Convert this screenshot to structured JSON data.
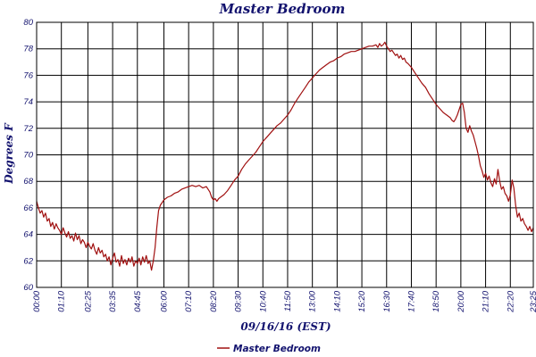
{
  "chart_data": {
    "type": "line",
    "title": "Master Bedroom",
    "xlabel": "09/16/16 (EST)",
    "ylabel": "Degrees F",
    "ylim": [
      60,
      80
    ],
    "y_ticks": [
      "60",
      "62",
      "64",
      "66",
      "68",
      "70",
      "72",
      "74",
      "76",
      "78",
      "80"
    ],
    "x_ticks": [
      "00:00",
      "01:10",
      "02:25",
      "03:35",
      "04:45",
      "06:00",
      "07:10",
      "08:20",
      "09:30",
      "10:40",
      "11:50",
      "13:00",
      "14:10",
      "15:20",
      "16:30",
      "17:40",
      "18:50",
      "20:00",
      "21:10",
      "22:20",
      "23:25"
    ],
    "x_tick_minutes": [
      0,
      70,
      145,
      215,
      285,
      360,
      430,
      500,
      570,
      640,
      710,
      780,
      850,
      920,
      990,
      1060,
      1130,
      1200,
      1270,
      1340,
      1405
    ],
    "x_range_minutes": [
      0,
      1405
    ],
    "grid": true,
    "legend_position": "bottom",
    "line_color": "#a01010",
    "text_color": "#12126e",
    "series": [
      {
        "name": "Master Bedroom",
        "points": [
          [
            0,
            66.5
          ],
          [
            5,
            66.0
          ],
          [
            10,
            65.6
          ],
          [
            15,
            65.8
          ],
          [
            20,
            65.3
          ],
          [
            25,
            65.6
          ],
          [
            30,
            65.0
          ],
          [
            35,
            65.2
          ],
          [
            40,
            64.6
          ],
          [
            45,
            64.9
          ],
          [
            50,
            64.4
          ],
          [
            55,
            64.8
          ],
          [
            60,
            64.5
          ],
          [
            65,
            64.3
          ],
          [
            70,
            64.0
          ],
          [
            75,
            64.5
          ],
          [
            80,
            64.1
          ],
          [
            85,
            63.8
          ],
          [
            90,
            64.2
          ],
          [
            95,
            63.7
          ],
          [
            100,
            63.9
          ],
          [
            105,
            63.5
          ],
          [
            110,
            64.1
          ],
          [
            115,
            63.6
          ],
          [
            120,
            63.9
          ],
          [
            125,
            63.3
          ],
          [
            130,
            63.6
          ],
          [
            135,
            63.4
          ],
          [
            140,
            63.0
          ],
          [
            145,
            63.4
          ],
          [
            150,
            63.1
          ],
          [
            155,
            62.9
          ],
          [
            160,
            63.3
          ],
          [
            165,
            62.8
          ],
          [
            170,
            62.5
          ],
          [
            175,
            63.0
          ],
          [
            180,
            62.6
          ],
          [
            185,
            62.8
          ],
          [
            190,
            62.3
          ],
          [
            195,
            62.5
          ],
          [
            200,
            62.0
          ],
          [
            205,
            62.3
          ],
          [
            210,
            61.7
          ],
          [
            215,
            62.2
          ],
          [
            220,
            62.6
          ],
          [
            225,
            61.9
          ],
          [
            230,
            62.1
          ],
          [
            235,
            61.6
          ],
          [
            240,
            62.4
          ],
          [
            245,
            61.8
          ],
          [
            250,
            62.1
          ],
          [
            255,
            61.7
          ],
          [
            260,
            62.2
          ],
          [
            265,
            61.9
          ],
          [
            270,
            62.3
          ],
          [
            275,
            61.6
          ],
          [
            280,
            62.0
          ],
          [
            285,
            61.8
          ],
          [
            290,
            62.2
          ],
          [
            295,
            61.7
          ],
          [
            300,
            62.3
          ],
          [
            305,
            61.9
          ],
          [
            310,
            62.4
          ],
          [
            315,
            61.8
          ],
          [
            320,
            62.0
          ],
          [
            325,
            61.3
          ],
          [
            330,
            62.0
          ],
          [
            335,
            63.0
          ],
          [
            340,
            64.5
          ],
          [
            345,
            65.8
          ],
          [
            350,
            66.2
          ],
          [
            355,
            66.4
          ],
          [
            360,
            66.6
          ],
          [
            370,
            66.8
          ],
          [
            380,
            66.9
          ],
          [
            390,
            67.1
          ],
          [
            400,
            67.2
          ],
          [
            410,
            67.4
          ],
          [
            420,
            67.5
          ],
          [
            430,
            67.6
          ],
          [
            440,
            67.7
          ],
          [
            450,
            67.6
          ],
          [
            460,
            67.7
          ],
          [
            470,
            67.5
          ],
          [
            480,
            67.6
          ],
          [
            490,
            67.2
          ],
          [
            495,
            66.8
          ],
          [
            500,
            66.6
          ],
          [
            505,
            66.7
          ],
          [
            510,
            66.5
          ],
          [
            515,
            66.7
          ],
          [
            520,
            66.8
          ],
          [
            525,
            66.9
          ],
          [
            530,
            67.0
          ],
          [
            540,
            67.3
          ],
          [
            550,
            67.7
          ],
          [
            560,
            68.1
          ],
          [
            570,
            68.4
          ],
          [
            580,
            68.9
          ],
          [
            590,
            69.3
          ],
          [
            600,
            69.6
          ],
          [
            610,
            69.9
          ],
          [
            620,
            70.2
          ],
          [
            630,
            70.6
          ],
          [
            640,
            71.0
          ],
          [
            650,
            71.3
          ],
          [
            660,
            71.6
          ],
          [
            670,
            71.9
          ],
          [
            680,
            72.2
          ],
          [
            690,
            72.4
          ],
          [
            700,
            72.7
          ],
          [
            710,
            73.0
          ],
          [
            720,
            73.4
          ],
          [
            730,
            73.9
          ],
          [
            740,
            74.3
          ],
          [
            750,
            74.7
          ],
          [
            760,
            75.1
          ],
          [
            770,
            75.5
          ],
          [
            780,
            75.8
          ],
          [
            790,
            76.1
          ],
          [
            800,
            76.4
          ],
          [
            810,
            76.6
          ],
          [
            820,
            76.8
          ],
          [
            830,
            77.0
          ],
          [
            840,
            77.1
          ],
          [
            850,
            77.3
          ],
          [
            860,
            77.4
          ],
          [
            870,
            77.6
          ],
          [
            880,
            77.7
          ],
          [
            890,
            77.8
          ],
          [
            900,
            77.8
          ],
          [
            910,
            77.9
          ],
          [
            920,
            78.0
          ],
          [
            930,
            78.1
          ],
          [
            940,
            78.2
          ],
          [
            950,
            78.2
          ],
          [
            960,
            78.3
          ],
          [
            965,
            78.1
          ],
          [
            970,
            78.4
          ],
          [
            975,
            78.2
          ],
          [
            980,
            78.3
          ],
          [
            985,
            78.5
          ],
          [
            990,
            78.2
          ],
          [
            995,
            78.0
          ],
          [
            1000,
            77.8
          ],
          [
            1005,
            77.9
          ],
          [
            1010,
            77.7
          ],
          [
            1015,
            77.5
          ],
          [
            1020,
            77.6
          ],
          [
            1025,
            77.3
          ],
          [
            1030,
            77.5
          ],
          [
            1035,
            77.2
          ],
          [
            1040,
            77.3
          ],
          [
            1045,
            77.0
          ],
          [
            1050,
            76.9
          ],
          [
            1060,
            76.6
          ],
          [
            1070,
            76.2
          ],
          [
            1080,
            75.8
          ],
          [
            1090,
            75.4
          ],
          [
            1100,
            75.1
          ],
          [
            1110,
            74.6
          ],
          [
            1120,
            74.2
          ],
          [
            1130,
            73.8
          ],
          [
            1140,
            73.5
          ],
          [
            1150,
            73.2
          ],
          [
            1160,
            73.0
          ],
          [
            1170,
            72.8
          ],
          [
            1175,
            72.6
          ],
          [
            1180,
            72.5
          ],
          [
            1185,
            72.7
          ],
          [
            1190,
            73.0
          ],
          [
            1195,
            73.4
          ],
          [
            1200,
            73.8
          ],
          [
            1205,
            73.9
          ],
          [
            1210,
            73.2
          ],
          [
            1215,
            72.0
          ],
          [
            1220,
            71.7
          ],
          [
            1225,
            72.2
          ],
          [
            1230,
            71.8
          ],
          [
            1235,
            71.5
          ],
          [
            1240,
            71.0
          ],
          [
            1245,
            70.5
          ],
          [
            1250,
            69.9
          ],
          [
            1255,
            69.2
          ],
          [
            1260,
            68.8
          ],
          [
            1265,
            68.3
          ],
          [
            1270,
            68.6
          ],
          [
            1275,
            68.1
          ],
          [
            1280,
            68.4
          ],
          [
            1285,
            67.9
          ],
          [
            1290,
            67.6
          ],
          [
            1295,
            68.2
          ],
          [
            1300,
            67.8
          ],
          [
            1305,
            68.9
          ],
          [
            1310,
            68.0
          ],
          [
            1315,
            67.4
          ],
          [
            1320,
            67.6
          ],
          [
            1325,
            67.1
          ],
          [
            1330,
            66.9
          ],
          [
            1335,
            66.5
          ],
          [
            1340,
            67.0
          ],
          [
            1345,
            68.1
          ],
          [
            1350,
            67.5
          ],
          [
            1355,
            66.2
          ],
          [
            1360,
            65.3
          ],
          [
            1365,
            65.6
          ],
          [
            1370,
            65.0
          ],
          [
            1375,
            65.2
          ],
          [
            1380,
            64.8
          ],
          [
            1385,
            64.6
          ],
          [
            1390,
            64.3
          ],
          [
            1395,
            64.6
          ],
          [
            1400,
            64.2
          ],
          [
            1405,
            64.5
          ]
        ]
      }
    ]
  }
}
